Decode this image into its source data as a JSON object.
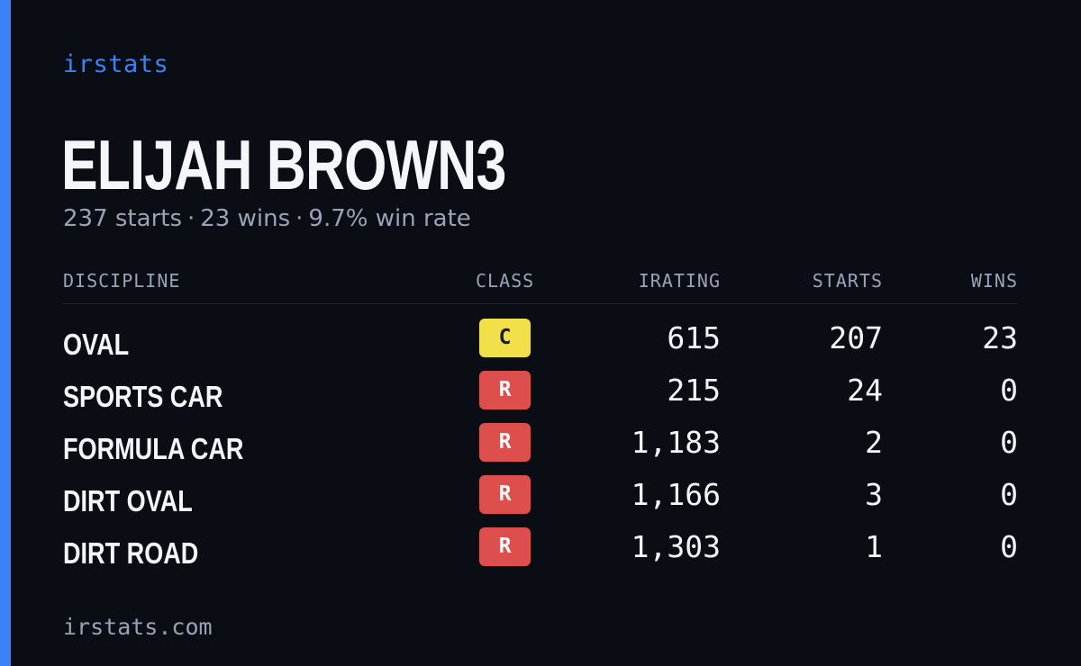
{
  "brand": "irstats",
  "driver": {
    "name": "ELIJAH BROWN3",
    "starts_text": "237 starts",
    "wins_text": "23 wins",
    "win_rate_text": "9.7% win rate",
    "separator": "·"
  },
  "table": {
    "headers": {
      "discipline": "DISCIPLINE",
      "class": "CLASS",
      "irating": "IRATING",
      "starts": "STARTS",
      "wins": "WINS"
    },
    "rows": [
      {
        "discipline": "OVAL",
        "class": "C",
        "irating": "615",
        "starts": "207",
        "wins": "23"
      },
      {
        "discipline": "SPORTS CAR",
        "class": "R",
        "irating": "215",
        "starts": "24",
        "wins": "0"
      },
      {
        "discipline": "FORMULA CAR",
        "class": "R",
        "irating": "1,183",
        "starts": "2",
        "wins": "0"
      },
      {
        "discipline": "DIRT OVAL",
        "class": "R",
        "irating": "1,166",
        "starts": "3",
        "wins": "0"
      },
      {
        "discipline": "DIRT ROAD",
        "class": "R",
        "irating": "1,303",
        "starts": "1",
        "wins": "0"
      }
    ]
  },
  "class_colors": {
    "C": {
      "bg": "#f2e04a",
      "fg": "#1a1a1a"
    },
    "R": {
      "bg": "#dc4f4c",
      "fg": "#ffffff"
    }
  },
  "accent_color": "#3b82f6",
  "footer": "irstats.com"
}
